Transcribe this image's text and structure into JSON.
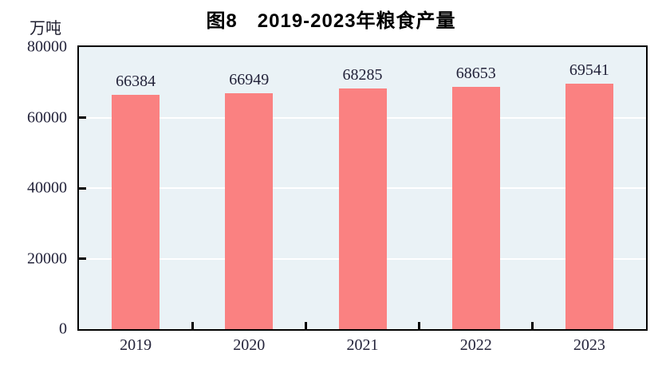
{
  "figure": {
    "title": "图8　2019-2023年粮食产量",
    "unit_label": "万吨"
  },
  "chart_data": {
    "type": "bar",
    "title": "图8　2019-2023年粮食产量",
    "ylabel_unit": "万吨",
    "categories": [
      "2019",
      "2020",
      "2021",
      "2022",
      "2023"
    ],
    "values": [
      66384,
      66949,
      68285,
      68653,
      69541
    ],
    "data_labels": [
      66384,
      66949,
      68285,
      68653,
      69541
    ],
    "ylim": [
      0,
      80000
    ],
    "yticks": [
      0,
      20000,
      40000,
      60000,
      80000
    ],
    "grid": "horizontal",
    "legend": "none",
    "colors": {
      "bar": "#FA8181",
      "plot_background": "#EAF2F6",
      "gridline": "#FFFFFF",
      "axis_frame": "#000000",
      "text": "#23233a",
      "title_text": "#000000"
    }
  }
}
